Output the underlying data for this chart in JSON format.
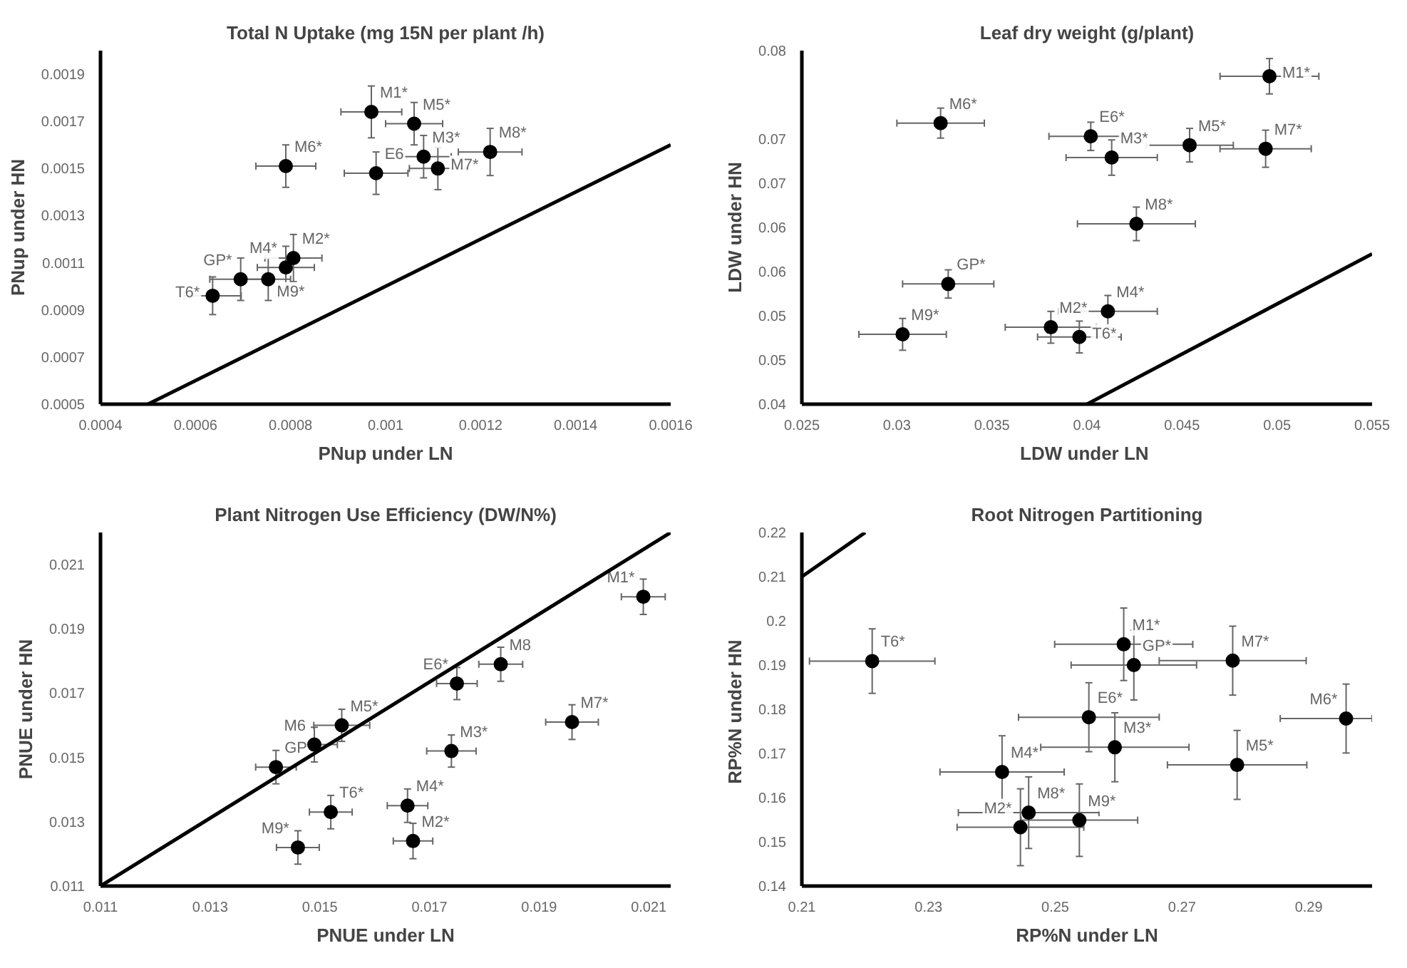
{
  "chart_data": [
    {
      "type": "scatter",
      "title": "Total N Uptake (mg 15N per plant /h)",
      "xlabel": "PNup under LN",
      "ylabel": "PNup under HN",
      "xlim": [
        0.0004,
        0.0016
      ],
      "ylim": [
        0.0005,
        0.002
      ],
      "xticks": [
        0.0004,
        0.0006,
        0.0008,
        0.001,
        0.0012,
        0.0014,
        0.0016
      ],
      "yticks": [
        0.0005,
        0.0007,
        0.0009,
        0.0011,
        0.0013,
        0.0015,
        0.0017,
        0.0019
      ],
      "marker": "circle",
      "x": [
        0.00097,
        0.00106,
        0.00079,
        0.00098,
        0.00108,
        0.00111,
        0.00122,
        0.000806,
        0.00079,
        0.000695,
        0.000753,
        0.000636
      ],
      "series": [
        {
          "color": "#000000",
          "values": [
            0.00174,
            0.00169,
            0.00151,
            0.00148,
            0.00155,
            0.0015,
            0.00157,
            0.00112,
            0.00108,
            0.00103,
            0.00103,
            0.00096
          ],
          "errors": [
            0.00011,
            9e-05,
            9e-05,
            9e-05,
            9e-05,
            9e-05,
            0.0001,
            0.0001,
            9e-05,
            9e-05,
            9e-05,
            8e-05
          ],
          "xerrors": [
            6.4e-05,
            6e-05,
            6.3e-05,
            6.7e-05,
            5.8e-05,
            6e-05,
            6.7e-05,
            6e-05,
            6e-05,
            6.5e-05,
            4.7e-05,
            6e-05
          ]
        },
        {
          "type": "line",
          "color": "#000000",
          "marker": "none",
          "x": [
            0.0005,
            0.0016
          ],
          "values": [
            0.0005,
            0.0016
          ]
        }
      ],
      "annotations": [
        {
          "text": "M1*",
          "x": 0.00097,
          "y": 0.00174
        },
        {
          "text": "M5*",
          "x": 0.00106,
          "y": 0.00169
        },
        {
          "text": "M6*",
          "x": 0.00079,
          "y": 0.00151
        },
        {
          "text": "E6",
          "x": 0.00098,
          "y": 0.00148
        },
        {
          "text": "M3*",
          "x": 0.00108,
          "y": 0.00155
        },
        {
          "text": "M7*",
          "x": 0.00111,
          "y": 0.0015
        },
        {
          "text": "M8*",
          "x": 0.00122,
          "y": 0.00157
        },
        {
          "text": "M2*",
          "x": 0.000806,
          "y": 0.00112
        },
        {
          "text": "M4*",
          "x": 0.00079,
          "y": 0.00108
        },
        {
          "text": "GP*",
          "x": 0.000695,
          "y": 0.00103
        },
        {
          "text": "M9*",
          "x": 0.000753,
          "y": 0.00103
        },
        {
          "text": "T6*",
          "x": 0.000636,
          "y": 0.00096
        }
      ]
    },
    {
      "type": "scatter",
      "title": "Leaf dry weight (g/plant)",
      "xlabel": "LDW under  LN",
      "ylabel": "LDW under HN",
      "xlim": [
        0.025,
        0.055
      ],
      "ylim": [
        0.04,
        0.08
      ],
      "xticks": [
        0.025,
        0.03,
        0.035,
        0.04,
        0.045,
        0.05,
        0.055
      ],
      "yticks": [
        0.04,
        {
          "value": 0.045,
          "label": "0.05"
        },
        0.05,
        {
          "value": 0.055,
          "label": "0.06"
        },
        0.06,
        {
          "value": 0.065,
          "label": "0.07"
        },
        0.07,
        0.08
      ],
      "marker": "circle",
      "x": [
        0.0496,
        0.0323,
        0.0402,
        0.0413,
        0.0454,
        0.0494,
        0.0426,
        0.0327,
        0.0411,
        0.0381,
        0.0396,
        0.0303
      ],
      "series": [
        {
          "color": "#000000",
          "values": [
            0.0771,
            0.0718,
            0.0703,
            0.0679,
            0.0693,
            0.0689,
            0.0604,
            0.0536,
            0.0505,
            0.0487,
            0.0476,
            0.0479
          ],
          "errors": [
            0.002,
            0.0017,
            0.0016,
            0.002,
            0.0019,
            0.0021,
            0.0019,
            0.0016,
            0.0018,
            0.0018,
            0.0018,
            0.0018
          ],
          "xerrors": [
            0.0026,
            0.0023,
            0.0022,
            0.0024,
            0.0023,
            0.0024,
            0.0031,
            0.0024,
            0.0026,
            0.0024,
            0.0022,
            0.0023
          ]
        },
        {
          "type": "line",
          "color": "#000000",
          "marker": "none",
          "x": [
            0.04,
            0.055
          ],
          "values": [
            0.04,
            0.057
          ]
        }
      ],
      "annotations": [
        {
          "text": "M1*",
          "x": 0.0496,
          "y": 0.0771
        },
        {
          "text": "M6*",
          "x": 0.0323,
          "y": 0.0718
        },
        {
          "text": "E6*",
          "x": 0.0402,
          "y": 0.0703
        },
        {
          "text": "M3*",
          "x": 0.0413,
          "y": 0.0679
        },
        {
          "text": "M5*",
          "x": 0.0454,
          "y": 0.0693
        },
        {
          "text": "M7*",
          "x": 0.0494,
          "y": 0.0689
        },
        {
          "text": "M8*",
          "x": 0.0426,
          "y": 0.0604
        },
        {
          "text": "GP*",
          "x": 0.0327,
          "y": 0.0536
        },
        {
          "text": "M4*",
          "x": 0.0411,
          "y": 0.0505
        },
        {
          "text": "M2*",
          "x": 0.0381,
          "y": 0.0487
        },
        {
          "text": "T6*",
          "x": 0.0396,
          "y": 0.0476
        },
        {
          "text": "M9*",
          "x": 0.0303,
          "y": 0.0479
        }
      ]
    },
    {
      "type": "scatter",
      "title": "Plant Nitrogen Use Efficiency (DW/N%)",
      "xlabel": "PNUE under LN",
      "ylabel": "PNUE under HN",
      "xlim": [
        0.011,
        0.0214
      ],
      "ylim": [
        0.011,
        0.022
      ],
      "xticks": [
        0.011,
        0.013,
        0.015,
        0.017,
        0.019,
        0.021
      ],
      "yticks": [
        0.011,
        0.013,
        0.015,
        0.017,
        0.019,
        0.021
      ],
      "marker": "circle",
      "x": [
        0.0209,
        0.0183,
        0.0175,
        0.0196,
        0.0154,
        0.0149,
        0.0142,
        0.0174,
        0.0152,
        0.0166,
        0.0167,
        0.0146
      ],
      "series": [
        {
          "color": "#000000",
          "values": [
            0.02,
            0.0179,
            0.0173,
            0.0161,
            0.016,
            0.0154,
            0.0147,
            0.0152,
            0.0133,
            0.0135,
            0.0124,
            0.0122
          ],
          "errors": [
            0.00055,
            0.00053,
            0.0005,
            0.00054,
            0.0005,
            0.00054,
            0.00052,
            0.0005,
            0.00052,
            0.00052,
            0.00055,
            0.00052
          ],
          "xerrors": [
            0.0004,
            0.0004,
            0.00037,
            0.00048,
            0.00051,
            0.00042,
            0.00037,
            0.00045,
            0.00039,
            0.00037,
            0.00036,
            0.00039
          ]
        },
        {
          "type": "line",
          "color": "#000000",
          "marker": "none",
          "x": [
            0.011,
            0.0214
          ],
          "values": [
            0.011,
            0.022
          ]
        }
      ],
      "annotations": [
        {
          "text": "M1*",
          "x": 0.0209,
          "y": 0.02
        },
        {
          "text": "M8",
          "x": 0.0183,
          "y": 0.0179
        },
        {
          "text": "E6*",
          "x": 0.0175,
          "y": 0.0173
        },
        {
          "text": "M7*",
          "x": 0.0196,
          "y": 0.0161
        },
        {
          "text": "M5*",
          "x": 0.0154,
          "y": 0.016
        },
        {
          "text": "M6",
          "x": 0.0149,
          "y": 0.0154
        },
        {
          "text": "GP",
          "x": 0.0142,
          "y": 0.0147
        },
        {
          "text": "M3*",
          "x": 0.0174,
          "y": 0.0152
        },
        {
          "text": "T6*",
          "x": 0.0152,
          "y": 0.0133
        },
        {
          "text": "M4*",
          "x": 0.0166,
          "y": 0.0135
        },
        {
          "text": "M2*",
          "x": 0.0167,
          "y": 0.0124
        },
        {
          "text": "M9*",
          "x": 0.0146,
          "y": 0.0122
        }
      ]
    },
    {
      "type": "scatter",
      "title": "Root Nitrogen Partitioning",
      "xlabel": "RP%N under LN",
      "ylabel": "RP%N under  HN",
      "xlim": [
        0.21,
        0.3
      ],
      "ylim": [
        0.14,
        0.22
      ],
      "xticks": [
        0.21,
        0.23,
        0.25,
        0.27,
        0.29
      ],
      "yticks": [
        0.14,
        0.15,
        0.16,
        0.17,
        0.18,
        0.19,
        0.2,
        0.21,
        0.22
      ],
      "marker": "circle",
      "x": [
        0.2211,
        0.2608,
        0.2624,
        0.278,
        0.2553,
        0.2959,
        0.2594,
        0.2787,
        0.2416,
        0.2458,
        0.2538,
        0.2445
      ],
      "series": [
        {
          "color": "#000000",
          "values": [
            0.1909,
            0.1947,
            0.19,
            0.191,
            0.1782,
            0.1779,
            0.1714,
            0.1674,
            0.1658,
            0.1566,
            0.1549,
            0.1533
          ],
          "errors": [
            0.0073,
            0.0082,
            0.0079,
            0.0078,
            0.0078,
            0.0078,
            0.0078,
            0.0078,
            0.0082,
            0.0081,
            0.0082,
            0.0087
          ],
          "xerrors": [
            0.0099,
            0.0109,
            0.0099,
            0.0116,
            0.0111,
            [
              0.2855,
              0.3
            ],
            0.0117,
            0.011,
            0.0098,
            0.0111,
            0.0092,
            0.01
          ]
        },
        {
          "type": "line",
          "color": "#000000",
          "marker": "none",
          "x": [
            0.21,
            0.22
          ],
          "values": [
            0.21,
            0.22
          ]
        }
      ],
      "annotations": [
        {
          "text": "T6*",
          "x": 0.2211,
          "y": 0.1909
        },
        {
          "text": "M1*",
          "x": 0.2608,
          "y": 0.1947
        },
        {
          "text": "GP*",
          "x": 0.2624,
          "y": 0.19
        },
        {
          "text": "M7*",
          "x": 0.278,
          "y": 0.191
        },
        {
          "text": "E6*",
          "x": 0.2553,
          "y": 0.1782
        },
        {
          "text": "M6*",
          "x": 0.2959,
          "y": 0.1779
        },
        {
          "text": "M3*",
          "x": 0.2594,
          "y": 0.1714
        },
        {
          "text": "M5*",
          "x": 0.2787,
          "y": 0.1674
        },
        {
          "text": "M4*",
          "x": 0.2416,
          "y": 0.1658
        },
        {
          "text": "M8*",
          "x": 0.2458,
          "y": 0.1566
        },
        {
          "text": "M9*",
          "x": 0.2538,
          "y": 0.1549
        },
        {
          "text": "M2*",
          "x": 0.2445,
          "y": 0.1533
        }
      ]
    }
  ]
}
